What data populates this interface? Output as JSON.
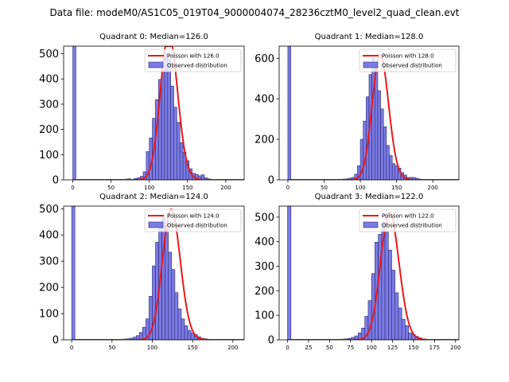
{
  "figure": {
    "suptitle": "Data file: modeM0/AS1C05_019T04_9000004074_28236cztM0_level2_quad_clean.evt"
  },
  "colors": {
    "bar_fill": "#7b7be6",
    "bar_edge": "#2a2a6e",
    "poisson_line": "#e8191b"
  },
  "chart_data": [
    {
      "type": "bar",
      "title": "Quadrant 0: Median=126.0",
      "median": 126.0,
      "xlim": [
        -12,
        224
      ],
      "ylim": [
        0,
        530
      ],
      "xticks": [
        0,
        50,
        100,
        150,
        200
      ],
      "yticks": [
        0,
        100,
        200,
        300,
        400,
        500
      ],
      "bin_width": 4,
      "zero_bin_value": 530,
      "bins_start": 64,
      "bin_values": [
        2,
        3,
        4,
        2,
        5,
        8,
        14,
        32,
        112,
        166,
        244,
        318,
        398,
        430,
        500,
        476,
        372,
        288,
        228,
        148,
        110,
        76,
        44,
        26,
        22,
        16,
        20,
        8,
        4,
        2,
        1,
        1,
        1,
        1,
        1,
        0,
        0,
        1
      ],
      "legend": [
        "Poisson with 126.0",
        "Observed distribution"
      ]
    },
    {
      "type": "bar",
      "title": "Quadrant 1: Median=128.0",
      "median": 128.0,
      "xlim": [
        -12,
        236
      ],
      "ylim": [
        0,
        660
      ],
      "xticks": [
        0,
        50,
        100,
        150,
        200
      ],
      "yticks": [
        0,
        200,
        400,
        600
      ],
      "bin_width": 4,
      "zero_bin_value": 660,
      "bins_start": 64,
      "bin_values": [
        2,
        3,
        3,
        4,
        5,
        8,
        12,
        28,
        70,
        200,
        290,
        410,
        520,
        600,
        560,
        440,
        350,
        262,
        170,
        120,
        80,
        70,
        58,
        36,
        24,
        12,
        12,
        12,
        8,
        4,
        2,
        2,
        1,
        1,
        1,
        0,
        0,
        1,
        1,
        0,
        1
      ],
      "legend": [
        "Poisson with 128.0",
        "Observed distribution"
      ]
    },
    {
      "type": "bar",
      "title": "Quadrant 2: Median=124.0",
      "median": 124.0,
      "xlim": [
        -10,
        214
      ],
      "ylim": [
        0,
        510
      ],
      "xticks": [
        0,
        50,
        100,
        150,
        200
      ],
      "yticks": [
        0,
        100,
        200,
        300,
        400,
        500
      ],
      "bin_width": 4,
      "zero_bin_value": 510,
      "bins_start": 56,
      "bin_values": [
        1,
        2,
        3,
        4,
        6,
        10,
        16,
        28,
        48,
        80,
        166,
        282,
        372,
        426,
        468,
        420,
        334,
        268,
        180,
        118,
        80,
        54,
        36,
        26,
        20,
        12,
        6,
        4,
        2,
        2,
        1,
        1,
        1,
        1,
        0,
        1
      ],
      "legend": [
        "Poisson with 124.0",
        "Observed distribution"
      ]
    },
    {
      "type": "bar",
      "title": "Quadrant 3: Median=122.0",
      "median": 122.0,
      "xlim": [
        -10,
        204
      ],
      "ylim": [
        0,
        545
      ],
      "xticks": [
        0,
        25,
        50,
        75,
        100,
        125,
        150,
        175,
        200
      ],
      "yticks": [
        0,
        100,
        200,
        300,
        400,
        500
      ],
      "bin_width": 4,
      "zero_bin_value": 545,
      "bins_start": 56,
      "bin_values": [
        1,
        2,
        3,
        4,
        6,
        10,
        16,
        28,
        48,
        96,
        160,
        270,
        398,
        430,
        480,
        440,
        366,
        284,
        192,
        130,
        84,
        58,
        28,
        22,
        14,
        8,
        4,
        2,
        2,
        1,
        1,
        1,
        0,
        1
      ],
      "legend": [
        "Poisson with 122.0",
        "Observed distribution"
      ]
    }
  ]
}
